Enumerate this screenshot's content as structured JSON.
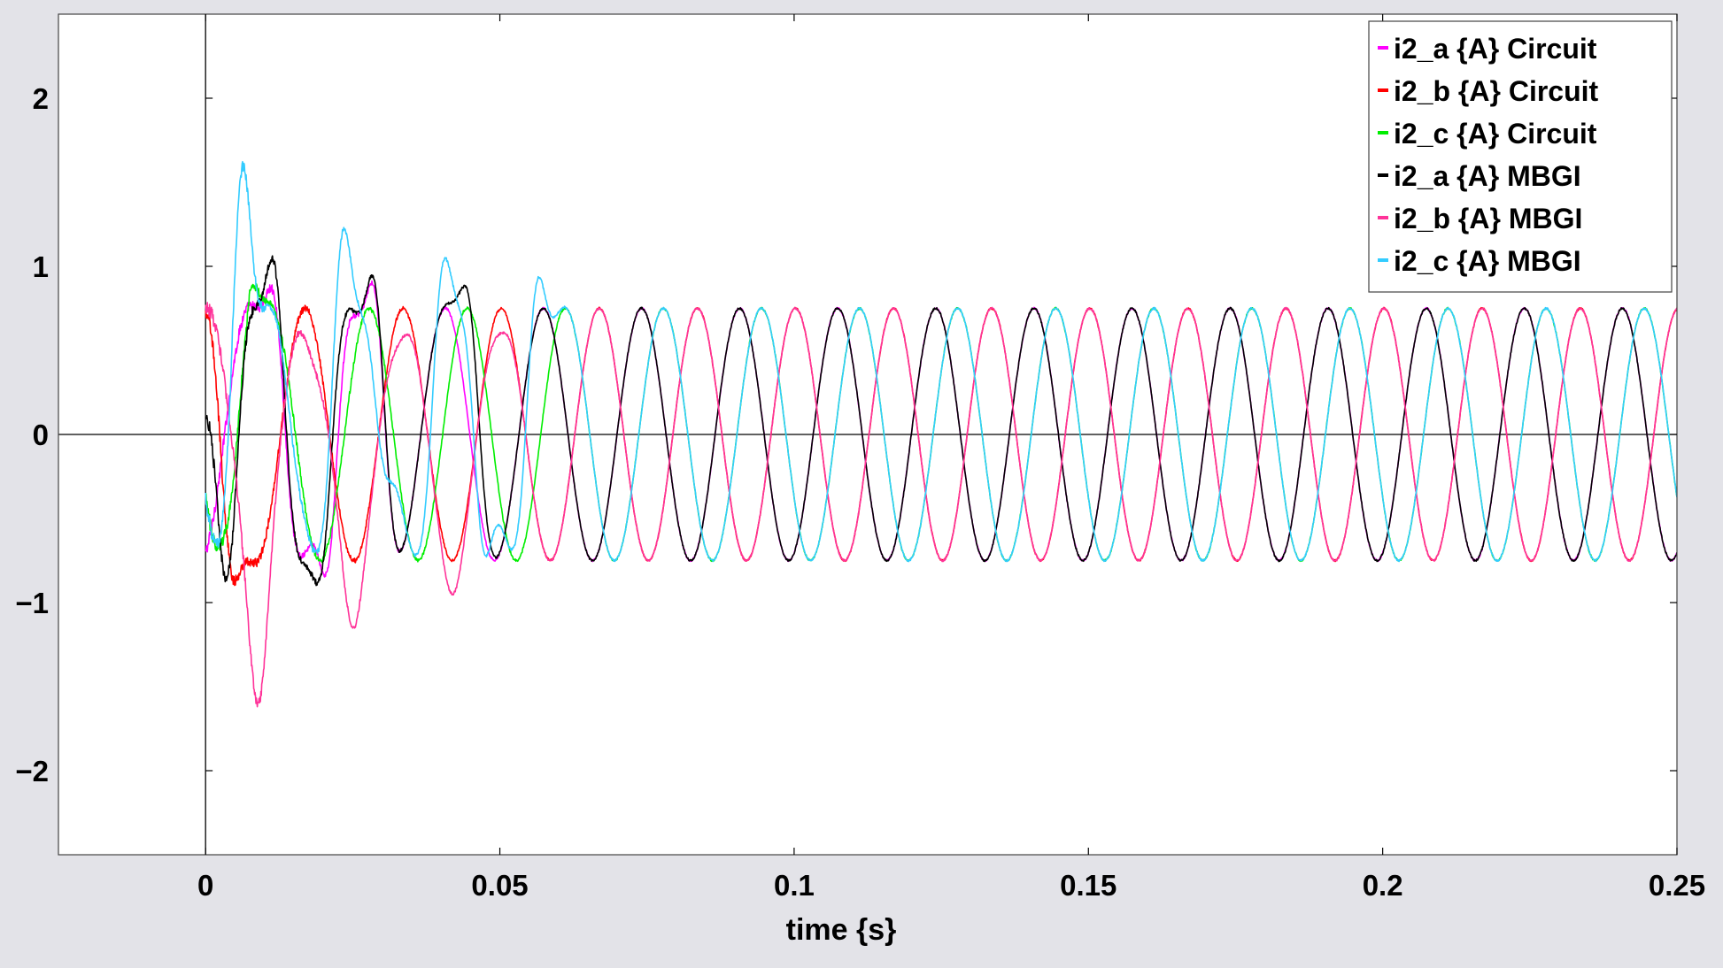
{
  "colors": {
    "figure_background": "#e3e3e8",
    "axes_background": "#ffffff",
    "axis_line": "#000000"
  },
  "chart_data": {
    "type": "line",
    "title": "",
    "xlabel": "time {s}",
    "ylabel": "",
    "xlim": [
      -0.025,
      0.25
    ],
    "ylim": [
      -2.5,
      2.5
    ],
    "xticks": [
      0,
      0.05,
      0.1,
      0.15,
      0.2,
      0.25
    ],
    "xtick_labels": [
      "0",
      "0.05",
      "0.1",
      "0.15",
      "0.2",
      "0.25"
    ],
    "yticks": [
      -2,
      -1,
      0,
      1,
      2
    ],
    "ytick_labels": [
      "−2",
      "−1",
      "0",
      "1",
      "2"
    ],
    "grid": false,
    "zero_lines": true,
    "legend_position": "top-right",
    "frequency_hz": 60,
    "steady_state_amplitude": 0.75,
    "series": [
      {
        "name": "i2_a {A} Circuit",
        "color": "#ff00ff",
        "phase_deg": -70,
        "transient_peaks": [
          [
            0.012,
            0.75
          ],
          [
            0.021,
            -0.75
          ],
          [
            0.029,
            0.8
          ]
        ]
      },
      {
        "name": "i2_b {A} Circuit",
        "color": "#ff0000",
        "phase_deg": 85,
        "transient_peaks": [
          [
            0.0,
            0.75
          ],
          [
            0.004,
            -0.75
          ]
        ]
      },
      {
        "name": "i2_c {A} Circuit",
        "color": "#00ee00",
        "phase_deg": -150,
        "transient_peaks": [
          [
            0.004,
            -0.55
          ],
          [
            0.007,
            0.75
          ]
        ]
      },
      {
        "name": "i2_a {A} MBGI",
        "color": "#000000",
        "phase_deg": -70,
        "transient_peaks": [
          [
            0.0,
            0.15
          ],
          [
            0.004,
            -0.85
          ],
          [
            0.012,
            0.95
          ],
          [
            0.02,
            -0.75
          ],
          [
            0.029,
            0.85
          ],
          [
            0.045,
            0.75
          ]
        ]
      },
      {
        "name": "i2_b {A} MBGI",
        "color": "#ff3399",
        "phase_deg": 85,
        "transient_peaks": [
          [
            0.009,
            -1.6
          ],
          [
            0.018,
            0.45
          ],
          [
            0.025,
            -1.15
          ],
          [
            0.033,
            0.55
          ],
          [
            0.042,
            -0.95
          ],
          [
            0.05,
            0.6
          ]
        ]
      },
      {
        "name": "i2_c {A} MBGI",
        "color": "#33ccff",
        "phase_deg": -150,
        "transient_peaks": [
          [
            0.006,
            1.55
          ],
          [
            0.015,
            -0.1
          ],
          [
            0.023,
            1.15
          ],
          [
            0.03,
            -0.15
          ],
          [
            0.04,
            0.95
          ],
          [
            0.047,
            -0.65
          ],
          [
            0.056,
            0.85
          ]
        ]
      }
    ]
  }
}
